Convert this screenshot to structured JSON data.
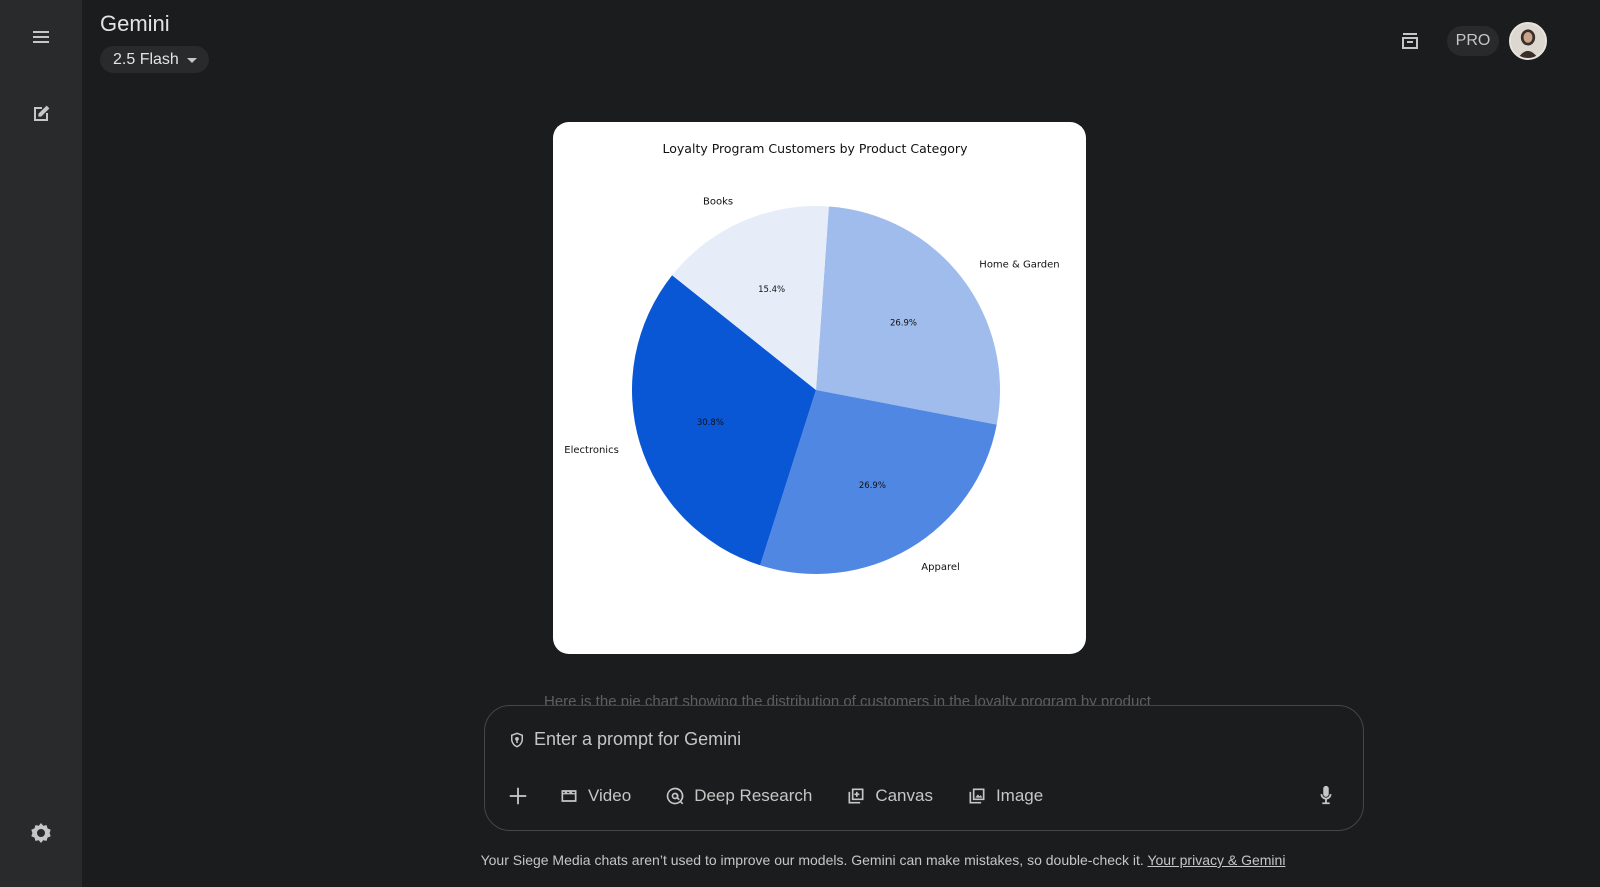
{
  "app": {
    "title": "Gemini",
    "model": "2.5 Flash",
    "plan_badge": "PRO"
  },
  "sidebar": {
    "icons": [
      "menu-icon",
      "new-chat-icon",
      "settings-icon"
    ]
  },
  "chart_data": {
    "type": "pie",
    "title": "Loyalty Program Customers by Product Category",
    "slices": [
      {
        "label": "Home & Garden",
        "value": 26.9,
        "value_label": "26.9%",
        "color": "#9fbcec"
      },
      {
        "label": "Apparel",
        "value": 26.9,
        "value_label": "26.9%",
        "color": "#5087e3"
      },
      {
        "label": "Electronics",
        "value": 30.8,
        "value_label": "30.8%",
        "color": "#0a57d5"
      },
      {
        "label": "Books",
        "value": 15.4,
        "value_label": "15.4%",
        "color": "#e6edf9"
      }
    ],
    "start_angle_deg": 86,
    "direction": "clockwise"
  },
  "composer": {
    "placeholder": "Enter a prompt for Gemini",
    "faded_text": "Here is the pie chart showing the distribution of customers in the loyalty program by product",
    "tools": [
      {
        "label": "Video",
        "icon": "video-icon"
      },
      {
        "label": "Deep Research",
        "icon": "deep-research-icon"
      },
      {
        "label": "Canvas",
        "icon": "canvas-icon"
      },
      {
        "label": "Image",
        "icon": "image-icon"
      }
    ]
  },
  "footer": {
    "text": "Your Siege Media chats aren’t used to improve our models. Gemini can make mistakes, so double-check it. ",
    "link": "Your privacy & Gemini"
  }
}
